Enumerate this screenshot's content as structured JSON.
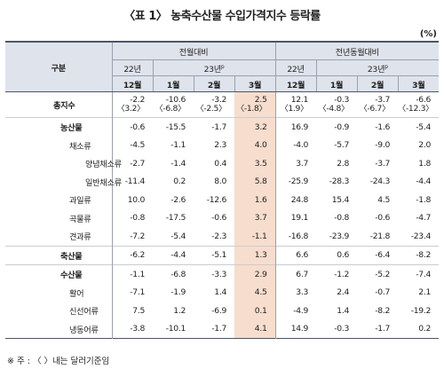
{
  "title": "〈표 1〉 농축수산물 수입가격지수 등락률",
  "unit": "(%)",
  "header": {
    "gubun": "구분",
    "mom": "전월대비",
    "yoy": "전년동월대비",
    "y22": "22년",
    "y23": "23년",
    "y23_sup": "p",
    "months": [
      "12월",
      "1월",
      "2월",
      "3월",
      "12월",
      "1월",
      "2월",
      "3월"
    ]
  },
  "rows": [
    {
      "label": "총지수",
      "level": 0,
      "bold": true,
      "values": [
        "-2.2",
        "-10.6",
        "-3.2",
        "2.5",
        "12.1",
        "-0.3",
        "-3.7",
        "-6.6"
      ],
      "sub": [
        "〈3.2〉",
        "〈-6.8〉",
        "〈-2.5〉",
        "〈-1.8〉",
        "〈1.9〉",
        "〈-4.8〉",
        "〈-6.7〉",
        "〈-12.3〉"
      ]
    },
    {
      "label": "농산물",
      "level": 1,
      "bold": true,
      "values": [
        "-0.6",
        "-15.5",
        "-1.7",
        "3.2",
        "16.9",
        "-0.9",
        "-1.6",
        "-5.4"
      ]
    },
    {
      "label": "채소류",
      "level": 2,
      "values": [
        "-4.5",
        "-1.1",
        "2.3",
        "4.0",
        "-4.0",
        "-5.7",
        "-9.0",
        "2.0"
      ]
    },
    {
      "label": "양념채소류",
      "level": 3,
      "values": [
        "-2.7",
        "-1.4",
        "0.4",
        "3.5",
        "3.7",
        "2.8",
        "-3.7",
        "1.8"
      ]
    },
    {
      "label": "일반채소류",
      "level": 3,
      "values": [
        "-11.4",
        "0.2",
        "8.0",
        "5.8",
        "-25.9",
        "-28.3",
        "-24.3",
        "-4.4"
      ]
    },
    {
      "label": "과일류",
      "level": 2,
      "values": [
        "10.0",
        "-2.6",
        "-12.6",
        "1.6",
        "24.8",
        "15.4",
        "4.5",
        "-1.8"
      ]
    },
    {
      "label": "곡물류",
      "level": 2,
      "values": [
        "-0.8",
        "-17.5",
        "-0.6",
        "3.7",
        "19.1",
        "-0.8",
        "-0.6",
        "-4.7"
      ]
    },
    {
      "label": "견과류",
      "level": 2,
      "values": [
        "-7.2",
        "-5.4",
        "-2.3",
        "-1.1",
        "-16.8",
        "-23.9",
        "-21.8",
        "-23.4"
      ]
    },
    {
      "label": "축산물",
      "level": 1,
      "bold": true,
      "values": [
        "-6.2",
        "-4.4",
        "-5.1",
        "1.3",
        "6.6",
        "0.6",
        "-6.4",
        "-8.2"
      ]
    },
    {
      "label": "수산물",
      "level": 1,
      "bold": true,
      "values": [
        "-1.1",
        "-6.8",
        "-3.3",
        "2.9",
        "6.7",
        "-1.2",
        "-5.2",
        "-7.4"
      ]
    },
    {
      "label": "활어",
      "level": 2,
      "values": [
        "-7.1",
        "-1.9",
        "1.4",
        "4.5",
        "3.3",
        "2.4",
        "-0.7",
        "2.1"
      ]
    },
    {
      "label": "신선어류",
      "level": 2,
      "values": [
        "7.5",
        "1.2",
        "-6.9",
        "0.1",
        "-4.9",
        "1.4",
        "-8.2",
        "-19.2"
      ]
    },
    {
      "label": "냉동어류",
      "level": 2,
      "values": [
        "-3.8",
        "-10.1",
        "-1.7",
        "4.1",
        "14.9",
        "-0.3",
        "-1.7",
        "0.2"
      ]
    }
  ],
  "note": "※ 주 : 〈 〉내는 달러기준임",
  "colors": {
    "header_bg": "#dfe3ec",
    "highlight": "#f7ddcd",
    "border": "#4d5566"
  }
}
